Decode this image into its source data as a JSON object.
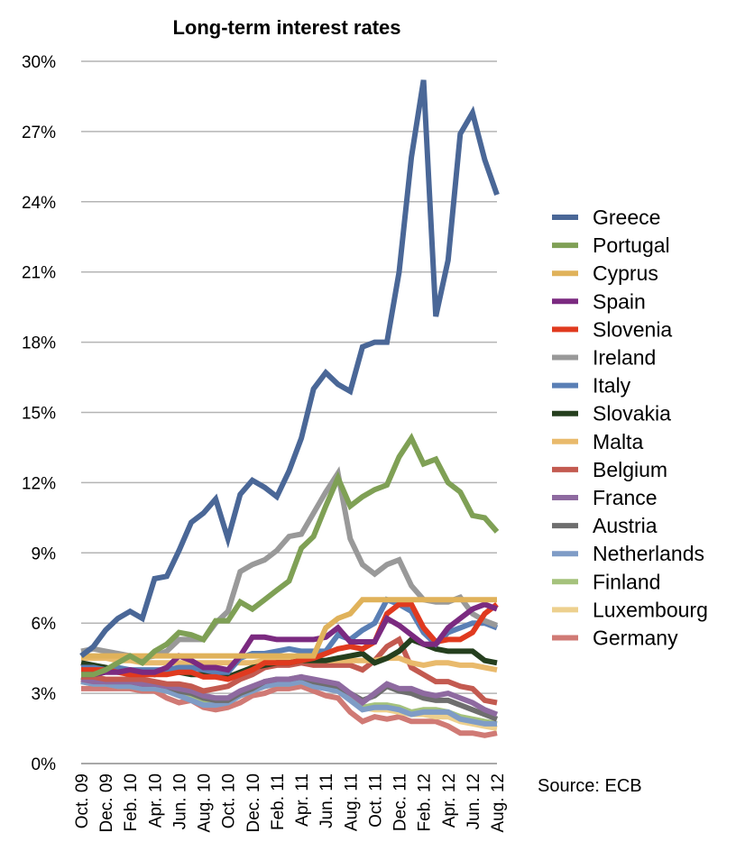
{
  "chart_data": {
    "type": "line",
    "title": "Long-term interest rates",
    "source": "Source: ECB",
    "ylim": [
      0,
      30
    ],
    "yticks": [
      0,
      3,
      6,
      9,
      12,
      15,
      18,
      21,
      24,
      27,
      30
    ],
    "ytick_labels": [
      "0%",
      "3%",
      "6%",
      "9%",
      "12%",
      "15%",
      "18%",
      "21%",
      "24%",
      "27%",
      "30%"
    ],
    "grid": true,
    "legend_position": "right",
    "x": [
      "Oct. 09",
      "Nov. 09",
      "Dec. 09",
      "Jan. 10",
      "Feb. 10",
      "Mar. 10",
      "Apr. 10",
      "May 10",
      "Jun. 10",
      "Jul. 10",
      "Aug. 10",
      "Sep. 10",
      "Oct. 10",
      "Nov. 10",
      "Dec. 10",
      "Jan. 11",
      "Feb. 11",
      "Mar. 11",
      "Apr. 11",
      "May 11",
      "Jun. 11",
      "Jul. 11",
      "Aug. 11",
      "Sep. 11",
      "Oct. 11",
      "Nov. 11",
      "Dec. 11",
      "Jan. 12",
      "Feb. 12",
      "Mar. 12",
      "Apr. 12",
      "May 12",
      "Jun. 12",
      "Jul. 12",
      "Aug. 12"
    ],
    "x_tick_labels": [
      "Oct. 09",
      "Dec. 09",
      "Feb. 10",
      "Apr. 10",
      "Jun. 10",
      "Aug. 10",
      "Oct. 10",
      "Dec. 10",
      "Feb. 11",
      "Apr. 11",
      "Jun. 11",
      "Aug. 11",
      "Oct. 11",
      "Dec. 11",
      "Feb. 12",
      "Apr. 12",
      "Jun. 12",
      "Aug. 12"
    ],
    "series": [
      {
        "name": "Greece",
        "color": "#4a6797",
        "values": [
          4.6,
          5.0,
          5.7,
          6.2,
          6.5,
          6.2,
          7.9,
          8.0,
          9.1,
          10.3,
          10.7,
          11.3,
          9.6,
          11.5,
          12.1,
          11.8,
          11.4,
          12.5,
          13.9,
          16.0,
          16.7,
          16.2,
          15.9,
          17.8,
          18.0,
          18.0,
          21.0,
          25.9,
          29.2,
          19.1,
          21.5,
          26.9,
          27.8,
          25.8,
          24.3
        ]
      },
      {
        "name": "Portugal",
        "color": "#7fa055",
        "values": [
          3.8,
          3.8,
          4.0,
          4.3,
          4.6,
          4.3,
          4.8,
          5.1,
          5.6,
          5.5,
          5.3,
          6.1,
          6.1,
          6.9,
          6.6,
          7.0,
          7.4,
          7.8,
          9.2,
          9.7,
          11.0,
          12.2,
          11.0,
          11.4,
          11.7,
          11.9,
          13.1,
          13.9,
          12.8,
          13.0,
          12.0,
          11.6,
          10.6,
          10.5,
          9.9
        ]
      },
      {
        "name": "Cyprus",
        "color": "#e0b25a",
        "values": [
          4.6,
          4.6,
          4.6,
          4.6,
          4.6,
          4.6,
          4.6,
          4.6,
          4.6,
          4.6,
          4.6,
          4.6,
          4.6,
          4.6,
          4.6,
          4.6,
          4.6,
          4.6,
          4.6,
          4.6,
          5.8,
          6.2,
          6.4,
          7.0,
          7.0,
          7.0,
          7.0,
          7.0,
          7.0,
          7.0,
          7.0,
          7.0,
          7.0,
          7.0,
          7.0
        ]
      },
      {
        "name": "Spain",
        "color": "#7b2a80",
        "values": [
          3.8,
          3.8,
          3.9,
          3.9,
          4.0,
          3.9,
          3.9,
          4.1,
          4.6,
          4.4,
          4.1,
          4.1,
          4.0,
          4.6,
          5.4,
          5.4,
          5.3,
          5.3,
          5.3,
          5.3,
          5.4,
          5.8,
          5.2,
          5.2,
          5.2,
          6.2,
          5.9,
          5.5,
          5.1,
          5.1,
          5.8,
          6.2,
          6.6,
          6.8,
          6.6
        ]
      },
      {
        "name": "Slovenia",
        "color": "#e03a1f",
        "values": [
          4.0,
          4.0,
          4.0,
          3.9,
          3.8,
          3.8,
          3.8,
          3.8,
          3.9,
          3.9,
          3.7,
          3.7,
          3.6,
          3.8,
          4.0,
          4.3,
          4.3,
          4.3,
          4.4,
          4.5,
          4.7,
          4.9,
          5.0,
          4.9,
          5.2,
          6.4,
          6.8,
          6.8,
          5.8,
          5.2,
          5.3,
          5.3,
          5.6,
          6.4,
          6.8
        ]
      },
      {
        "name": "Ireland",
        "color": "#999999",
        "values": [
          4.8,
          4.9,
          4.8,
          4.7,
          4.6,
          4.5,
          4.6,
          4.8,
          5.3,
          5.3,
          5.3,
          6.0,
          6.5,
          8.2,
          8.5,
          8.7,
          9.1,
          9.7,
          9.8,
          10.7,
          11.6,
          12.4,
          9.6,
          8.5,
          8.1,
          8.5,
          8.7,
          7.6,
          7.0,
          6.9,
          6.9,
          7.1,
          6.4,
          6.1,
          5.9
        ]
      },
      {
        "name": "Italy",
        "color": "#5a7fb5",
        "values": [
          4.1,
          4.1,
          4.0,
          4.1,
          4.0,
          4.0,
          4.0,
          4.0,
          4.1,
          4.1,
          4.0,
          3.9,
          3.9,
          4.5,
          4.7,
          4.7,
          4.8,
          4.9,
          4.8,
          4.8,
          4.8,
          5.5,
          5.3,
          5.7,
          6.0,
          7.0,
          6.8,
          6.5,
          5.6,
          5.1,
          5.6,
          5.8,
          6.0,
          6.0,
          5.8
        ]
      },
      {
        "name": "Slovakia",
        "color": "#253f1e",
        "values": [
          4.3,
          4.2,
          4.1,
          4.0,
          4.0,
          3.9,
          3.8,
          3.9,
          3.9,
          3.8,
          3.8,
          3.8,
          3.7,
          3.9,
          4.1,
          4.2,
          4.3,
          4.3,
          4.4,
          4.4,
          4.4,
          4.5,
          4.6,
          4.7,
          4.3,
          4.5,
          4.8,
          5.3,
          5.1,
          4.9,
          4.8,
          4.8,
          4.8,
          4.4,
          4.3
        ]
      },
      {
        "name": "Malta",
        "color": "#e9ba6c",
        "values": [
          4.5,
          4.5,
          4.5,
          4.4,
          4.4,
          4.3,
          4.3,
          4.3,
          4.3,
          4.3,
          4.3,
          4.3,
          4.3,
          4.3,
          4.3,
          4.4,
          4.4,
          4.4,
          4.4,
          4.4,
          4.4,
          4.4,
          4.4,
          4.4,
          4.4,
          4.5,
          4.5,
          4.3,
          4.2,
          4.3,
          4.3,
          4.2,
          4.2,
          4.1,
          4.0
        ]
      },
      {
        "name": "Belgium",
        "color": "#c35a50",
        "values": [
          3.7,
          3.7,
          3.6,
          3.6,
          3.6,
          3.6,
          3.5,
          3.4,
          3.4,
          3.3,
          3.1,
          3.2,
          3.3,
          3.6,
          3.8,
          4.1,
          4.2,
          4.2,
          4.3,
          4.2,
          4.2,
          4.2,
          4.2,
          4.0,
          4.4,
          5.0,
          5.3,
          4.1,
          3.8,
          3.5,
          3.5,
          3.3,
          3.2,
          2.7,
          2.6
        ]
      },
      {
        "name": "France",
        "color": "#8e6aa0",
        "values": [
          3.6,
          3.5,
          3.5,
          3.5,
          3.5,
          3.4,
          3.4,
          3.3,
          3.2,
          3.1,
          2.9,
          2.8,
          2.8,
          3.1,
          3.3,
          3.5,
          3.6,
          3.6,
          3.7,
          3.6,
          3.5,
          3.4,
          3.0,
          2.6,
          3.0,
          3.4,
          3.2,
          3.2,
          3.0,
          2.9,
          3.0,
          2.8,
          2.6,
          2.3,
          2.1
        ]
      },
      {
        "name": "Austria",
        "color": "#6e6e6e",
        "values": [
          3.7,
          3.6,
          3.5,
          3.5,
          3.5,
          3.4,
          3.4,
          3.3,
          3.1,
          3.0,
          2.8,
          2.7,
          2.7,
          3.0,
          3.2,
          3.5,
          3.6,
          3.6,
          3.7,
          3.5,
          3.4,
          3.3,
          3.0,
          2.7,
          2.9,
          3.3,
          3.1,
          3.0,
          2.8,
          2.7,
          2.7,
          2.5,
          2.3,
          2.1,
          1.9
        ]
      },
      {
        "name": "Netherlands",
        "color": "#7f9cc6",
        "values": [
          3.5,
          3.4,
          3.4,
          3.3,
          3.3,
          3.2,
          3.2,
          3.1,
          2.9,
          2.7,
          2.5,
          2.5,
          2.6,
          2.9,
          3.1,
          3.3,
          3.4,
          3.4,
          3.5,
          3.3,
          3.2,
          3.1,
          2.7,
          2.3,
          2.4,
          2.4,
          2.3,
          2.1,
          2.2,
          2.2,
          2.2,
          1.9,
          1.8,
          1.7,
          1.7
        ]
      },
      {
        "name": "Finland",
        "color": "#a5c27c",
        "values": [
          3.5,
          3.4,
          3.4,
          3.3,
          3.3,
          3.2,
          3.2,
          3.1,
          2.9,
          2.8,
          2.6,
          2.6,
          2.6,
          2.9,
          3.1,
          3.3,
          3.4,
          3.4,
          3.5,
          3.3,
          3.3,
          3.2,
          2.8,
          2.4,
          2.5,
          2.5,
          2.4,
          2.2,
          2.3,
          2.3,
          2.2,
          2.0,
          1.9,
          1.8,
          1.7
        ]
      },
      {
        "name": "Luxembourg",
        "color": "#edd08e",
        "values": [
          3.6,
          3.5,
          3.5,
          3.4,
          3.4,
          3.3,
          3.3,
          3.2,
          3.0,
          2.9,
          2.7,
          2.7,
          2.7,
          3.0,
          3.2,
          3.4,
          3.5,
          3.5,
          3.6,
          3.4,
          3.3,
          3.2,
          2.8,
          2.4,
          2.3,
          2.3,
          2.2,
          2.1,
          2.1,
          2.0,
          2.0,
          1.8,
          1.7,
          1.6,
          1.5
        ]
      },
      {
        "name": "Germany",
        "color": "#d07a75",
        "values": [
          3.2,
          3.2,
          3.2,
          3.2,
          3.2,
          3.1,
          3.1,
          2.8,
          2.6,
          2.7,
          2.4,
          2.3,
          2.4,
          2.6,
          2.9,
          3.0,
          3.2,
          3.2,
          3.3,
          3.1,
          2.9,
          2.8,
          2.2,
          1.8,
          2.0,
          1.9,
          2.0,
          1.8,
          1.8,
          1.8,
          1.6,
          1.3,
          1.3,
          1.2,
          1.3
        ]
      }
    ]
  }
}
